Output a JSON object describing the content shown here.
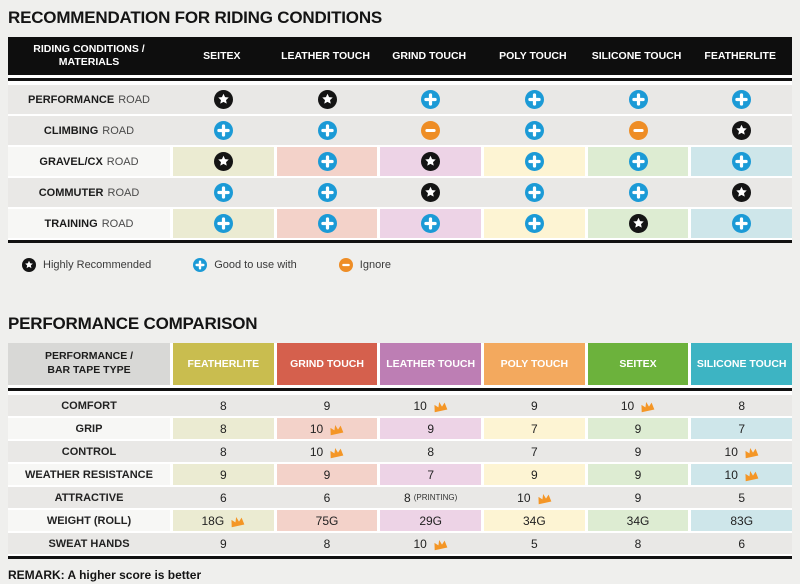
{
  "colors": {
    "page_bg": "#efefed",
    "header1_bg": "#0e0e0e",
    "gray_row": "#e9e8e6",
    "tint_label_cell": "#f7f7f5",
    "tints": [
      "#ebebd2",
      "#f3d2c9",
      "#edd3e6",
      "#fdf4d3",
      "#ddecd2",
      "#cee6ea"
    ],
    "icon_black": "#141414",
    "icon_blue": "#1b9ad6",
    "icon_orange": "#ee8d25",
    "crown_orange": "#f49626",
    "rule_black": "#111111"
  },
  "section1": {
    "title": "RECOMMENDATION FOR RIDING CONDITIONS",
    "table": {
      "corner_line1": "RIDING CONDITIONS /",
      "corner_line2": "MATERIALS",
      "columns": [
        "SEITEX",
        "LEATHER TOUCH",
        "GRIND TOUCH",
        "POLY TOUCH",
        "SILICONE TOUCH",
        "FEATHERLITE"
      ],
      "rows": [
        {
          "label_bold": "PERFORMANCE",
          "label_rest": "ROAD",
          "tinted": false,
          "cells": [
            "star",
            "star",
            "plus",
            "plus",
            "plus",
            "plus"
          ]
        },
        {
          "label_bold": "CLIMBING",
          "label_rest": "ROAD",
          "tinted": false,
          "cells": [
            "plus",
            "plus",
            "minus",
            "plus",
            "minus",
            "star"
          ]
        },
        {
          "label_bold": "GRAVEL/CX",
          "label_rest": "ROAD",
          "tinted": true,
          "cells": [
            "star",
            "plus",
            "star",
            "plus",
            "plus",
            "plus"
          ]
        },
        {
          "label_bold": "COMMUTER",
          "label_rest": "ROAD",
          "tinted": false,
          "cells": [
            "plus",
            "plus",
            "star",
            "plus",
            "plus",
            "star"
          ]
        },
        {
          "label_bold": "TRAINING",
          "label_rest": "ROAD",
          "tinted": true,
          "cells": [
            "plus",
            "plus",
            "plus",
            "plus",
            "star",
            "plus"
          ]
        }
      ]
    },
    "legend": [
      {
        "icon": "star",
        "label": "Highly Recommended"
      },
      {
        "icon": "plus",
        "label": "Good to use with"
      },
      {
        "icon": "minus",
        "label": "Ignore"
      }
    ]
  },
  "section2": {
    "title": "PERFORMANCE COMPARISON",
    "table": {
      "corner_line1": "PERFORMANCE /",
      "corner_line2": "BAR TAPE TYPE",
      "columns": [
        {
          "label": "FEATHERLITE",
          "color": "#c9bd4f"
        },
        {
          "label": "GRIND TOUCH",
          "color": "#d5604d"
        },
        {
          "label": "LEATHER TOUCH",
          "color": "#bd7eb4"
        },
        {
          "label": "POLY TOUCH",
          "color": "#f3a95e"
        },
        {
          "label": "SEITEX",
          "color": "#6cb23c"
        },
        {
          "label": "SILICONE TOUCH",
          "color": "#3db4c3"
        }
      ],
      "rows": [
        {
          "label": "COMFORT",
          "tinted": false,
          "cells": [
            {
              "v": "8"
            },
            {
              "v": "9"
            },
            {
              "v": "10",
              "crown": true
            },
            {
              "v": "9"
            },
            {
              "v": "10",
              "crown": true
            },
            {
              "v": "8"
            }
          ]
        },
        {
          "label": "GRIP",
          "tinted": true,
          "cells": [
            {
              "v": "8"
            },
            {
              "v": "10",
              "crown": true
            },
            {
              "v": "9"
            },
            {
              "v": "7"
            },
            {
              "v": "9"
            },
            {
              "v": "7"
            }
          ]
        },
        {
          "label": "CONTROL",
          "tinted": false,
          "cells": [
            {
              "v": "8"
            },
            {
              "v": "10",
              "crown": true
            },
            {
              "v": "8"
            },
            {
              "v": "7"
            },
            {
              "v": "9"
            },
            {
              "v": "10",
              "crown": true
            }
          ]
        },
        {
          "label": "WEATHER RESISTANCE",
          "tinted": true,
          "cells": [
            {
              "v": "9"
            },
            {
              "v": "9"
            },
            {
              "v": "7"
            },
            {
              "v": "9"
            },
            {
              "v": "9"
            },
            {
              "v": "10",
              "crown": true
            }
          ]
        },
        {
          "label": "ATTRACTIVE",
          "tinted": false,
          "cells": [
            {
              "v": "6"
            },
            {
              "v": "6"
            },
            {
              "v": "8",
              "suffix": "(PRINTING)"
            },
            {
              "v": "10",
              "crown": true
            },
            {
              "v": "9"
            },
            {
              "v": "5"
            }
          ]
        },
        {
          "label": "WEIGHT (ROLL)",
          "tinted": true,
          "cells": [
            {
              "v": "18G",
              "crown": true
            },
            {
              "v": "75G"
            },
            {
              "v": "29G"
            },
            {
              "v": "34G"
            },
            {
              "v": "34G"
            },
            {
              "v": "83G"
            }
          ]
        },
        {
          "label": "SWEAT HANDS",
          "tinted": false,
          "cells": [
            {
              "v": "9"
            },
            {
              "v": "8"
            },
            {
              "v": "10",
              "crown": true
            },
            {
              "v": "5"
            },
            {
              "v": "8"
            },
            {
              "v": "6"
            }
          ]
        }
      ]
    },
    "remark": "REMARK: A higher score is better"
  }
}
